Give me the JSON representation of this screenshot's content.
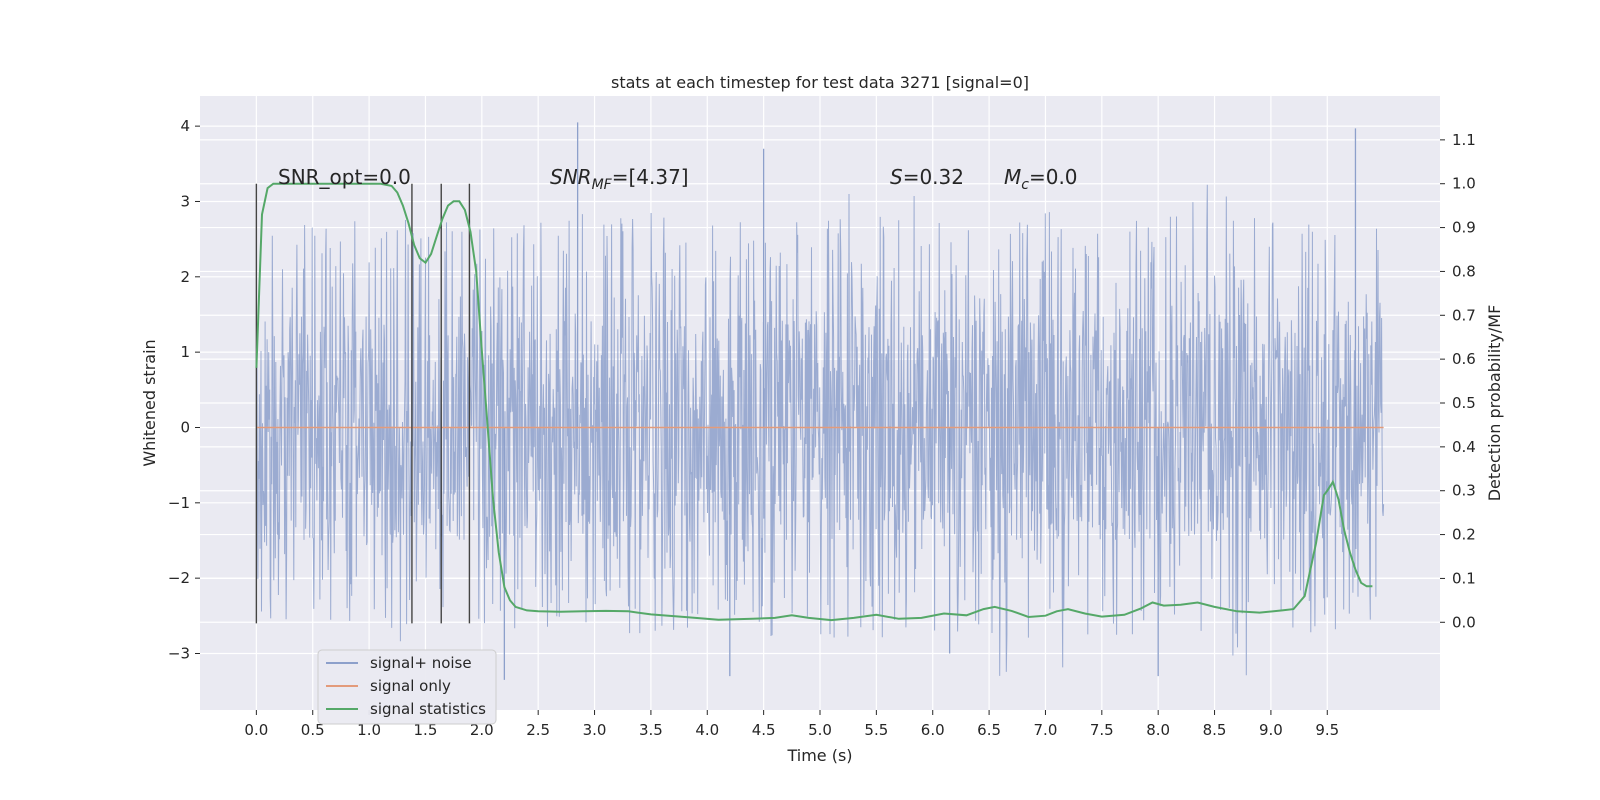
{
  "chart_data": {
    "type": "line",
    "title": "stats at each timestep for test data 3271 [signal=0]",
    "xlabel": "Time (s)",
    "ylabel": "Whitened strain",
    "ylabel_right": "Detection probability/MF",
    "xlim": [
      -0.5,
      10.5
    ],
    "ylim": [
      -3.75,
      4.4
    ],
    "ylim_right": [
      -0.2,
      1.2
    ],
    "x_ticks": [
      "0.0",
      "0.5",
      "1.0",
      "1.5",
      "2.0",
      "2.5",
      "3.0",
      "3.5",
      "4.0",
      "4.5",
      "5.0",
      "5.5",
      "6.0",
      "6.5",
      "7.0",
      "7.5",
      "8.0",
      "8.5",
      "9.0",
      "9.5"
    ],
    "y_ticks": [
      "−3",
      "−2",
      "−1",
      "0",
      "1",
      "2",
      "3",
      "4"
    ],
    "y_right_ticks": [
      "0.0",
      "0.1",
      "0.2",
      "0.3",
      "0.4",
      "0.5",
      "0.6",
      "0.7",
      "0.8",
      "0.9",
      "1.0",
      "1.1"
    ],
    "grid": true,
    "legend_position": "bottom-left",
    "annotations": {
      "snr_opt": "SNR_opt=0.0",
      "snr_mf_main": "SNR",
      "snr_mf_sub": "MF",
      "snr_mf_value": "=[4.37]",
      "s_label": "S",
      "s_value": "=0.32",
      "mc_label": "M",
      "mc_sub": "c",
      "mc_value": "=0.0"
    },
    "vertical_lines_x": [
      0.0,
      1.38,
      1.64,
      1.89
    ],
    "series": [
      {
        "name": "signal+ noise",
        "color": "#8da0cb",
        "description_range": [
          -3.4,
          4.05
        ],
        "noise_band": [
          -1.5,
          1.5
        ],
        "peak_spikes": [
          {
            "x": 2.85,
            "y": 4.05
          },
          {
            "x": 4.5,
            "y": 3.7
          },
          {
            "x": 9.75,
            "y": 3.97
          },
          {
            "x": 2.2,
            "y": -3.35
          },
          {
            "x": 4.2,
            "y": -3.3
          },
          {
            "x": 8.0,
            "y": -3.3
          },
          {
            "x": 6.15,
            "y": -3.0
          }
        ]
      },
      {
        "name": "signal only",
        "color": "#e39b7b",
        "x": [
          0.0,
          10.0
        ],
        "y": [
          0.0,
          0.0
        ]
      },
      {
        "name": "signal statistics",
        "color": "#55a868",
        "axis": "right",
        "x": [
          0.0,
          0.05,
          0.1,
          0.15,
          0.2,
          0.3,
          0.4,
          0.5,
          0.7,
          0.9,
          1.1,
          1.2,
          1.25,
          1.3,
          1.35,
          1.4,
          1.45,
          1.5,
          1.55,
          1.6,
          1.65,
          1.7,
          1.75,
          1.8,
          1.85,
          1.9,
          1.95,
          2.0,
          2.05,
          2.1,
          2.15,
          2.2,
          2.25,
          2.3,
          2.4,
          2.5,
          2.7,
          2.9,
          3.1,
          3.3,
          3.5,
          3.8,
          4.1,
          4.4,
          4.6,
          4.75,
          4.9,
          5.1,
          5.3,
          5.5,
          5.7,
          5.9,
          6.1,
          6.3,
          6.45,
          6.55,
          6.7,
          6.85,
          7.0,
          7.1,
          7.2,
          7.35,
          7.5,
          7.7,
          7.85,
          7.95,
          8.05,
          8.2,
          8.35,
          8.5,
          8.7,
          8.9,
          9.1,
          9.2,
          9.3,
          9.4,
          9.47,
          9.5,
          9.55,
          9.6,
          9.65,
          9.7,
          9.75,
          9.8,
          9.85,
          9.9
        ],
        "y": [
          0.58,
          0.93,
          0.99,
          1.0,
          1.0,
          1.0,
          1.0,
          1.0,
          1.0,
          1.0,
          1.0,
          0.995,
          0.98,
          0.95,
          0.91,
          0.86,
          0.83,
          0.82,
          0.84,
          0.88,
          0.92,
          0.95,
          0.96,
          0.96,
          0.94,
          0.89,
          0.8,
          0.62,
          0.45,
          0.28,
          0.16,
          0.08,
          0.05,
          0.035,
          0.027,
          0.025,
          0.024,
          0.025,
          0.026,
          0.025,
          0.018,
          0.012,
          0.006,
          0.008,
          0.01,
          0.016,
          0.01,
          0.005,
          0.01,
          0.017,
          0.008,
          0.01,
          0.02,
          0.016,
          0.03,
          0.035,
          0.026,
          0.012,
          0.015,
          0.025,
          0.03,
          0.02,
          0.013,
          0.017,
          0.032,
          0.045,
          0.038,
          0.04,
          0.045,
          0.035,
          0.025,
          0.022,
          0.027,
          0.03,
          0.06,
          0.18,
          0.29,
          0.3,
          0.32,
          0.28,
          0.21,
          0.16,
          0.12,
          0.09,
          0.082,
          0.082
        ]
      }
    ]
  }
}
